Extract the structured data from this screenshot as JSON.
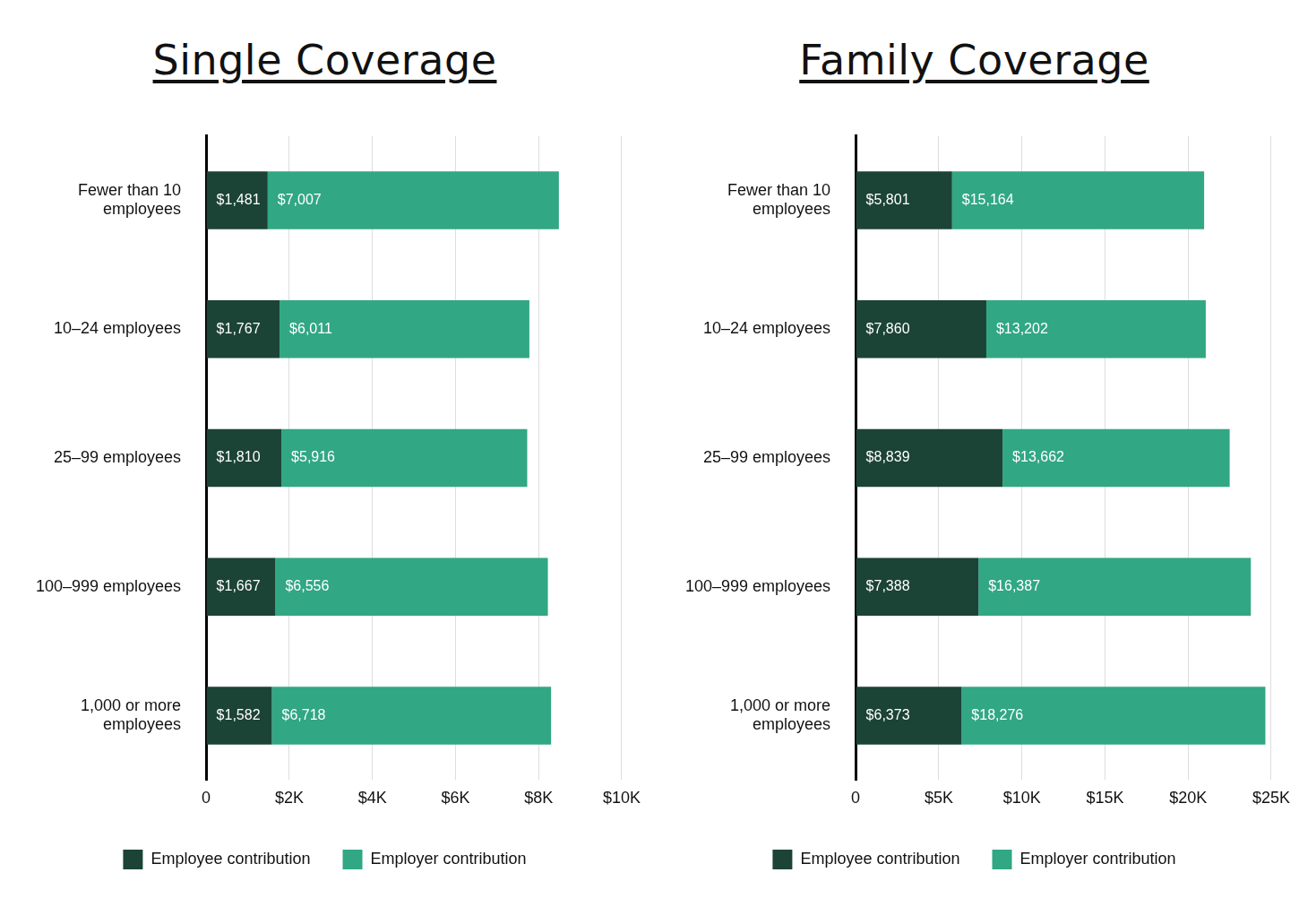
{
  "chart_data": [
    {
      "type": "bar",
      "title": "Single Coverage",
      "orientation": "horizontal",
      "stacked": true,
      "categories": [
        "Fewer than 10 employees",
        "10–24 employees",
        "25–99 employees",
        "100–999 employees",
        "1,000 or more employees"
      ],
      "series": [
        {
          "name": "Employee contribution",
          "color": "#1b4336",
          "values": [
            1481,
            1767,
            1810,
            1667,
            1582
          ],
          "value_labels": [
            "$1,481",
            "$1,767",
            "$1,810",
            "$1,667",
            "$1,582"
          ]
        },
        {
          "name": "Employer contribution",
          "color": "#31a784",
          "values": [
            7007,
            6011,
            5916,
            6556,
            6718
          ],
          "value_labels": [
            "$7,007",
            "$6,011",
            "$5,916",
            "$6,556",
            "$6,718"
          ]
        }
      ],
      "xlim": [
        0,
        10000
      ],
      "xticks": [
        0,
        {
          "value": 2000,
          "label": "$2K"
        },
        {
          "value": 4000,
          "label": "$4K"
        },
        {
          "value": 6000,
          "label": "$6K"
        },
        {
          "value": 8000,
          "label": "$8K"
        },
        {
          "value": 10000,
          "label": "$10K"
        }
      ],
      "grid": true,
      "legend": "bottom",
      "data_labels": true
    },
    {
      "type": "bar",
      "title": "Family Coverage",
      "orientation": "horizontal",
      "stacked": true,
      "categories": [
        "Fewer than 10 employees",
        "10–24 employees",
        "25–99 employees",
        "100–999 employees",
        "1,000 or more employees"
      ],
      "series": [
        {
          "name": "Employee contribution",
          "color": "#1b4336",
          "values": [
            5801,
            7860,
            8839,
            7388,
            6373
          ],
          "value_labels": [
            "$5,801",
            "$7,860",
            "$8,839",
            "$7,388",
            "$6,373"
          ]
        },
        {
          "name": "Employer contribution",
          "color": "#31a784",
          "values": [
            15164,
            13202,
            13662,
            16387,
            18276
          ],
          "value_labels": [
            "$15,164",
            "$13,202",
            "$13,662",
            "$16,387",
            "$18,276"
          ]
        }
      ],
      "xlim": [
        0,
        25000
      ],
      "xticks": [
        0,
        {
          "value": 5000,
          "label": "$5K"
        },
        {
          "value": 10000,
          "label": "$10K"
        },
        {
          "value": 15000,
          "label": "$15K"
        },
        {
          "value": 20000,
          "label": "$20K"
        },
        {
          "value": 25000,
          "label": "$25K"
        }
      ],
      "grid": true,
      "legend": "bottom",
      "data_labels": true
    }
  ]
}
